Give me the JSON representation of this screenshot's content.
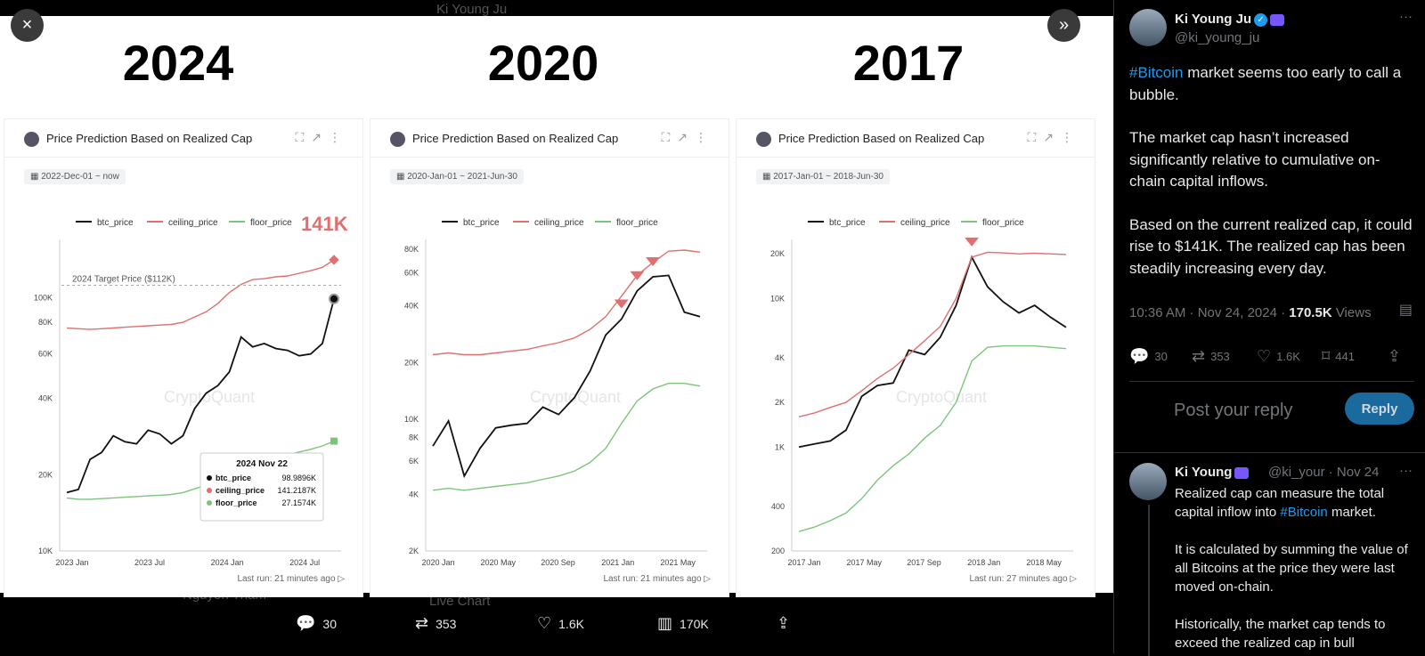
{
  "viewer": {
    "close_icon": "×",
    "collapse_icon": "»",
    "bg_ghost_top": "Ki Young Ju",
    "bg_ghost_reply_name": "Nguyen Tham",
    "bg_ghost_live": "Live Chart"
  },
  "image": {
    "years": [
      "2024",
      "2020",
      "2017"
    ],
    "cards": [
      {
        "title": "Price Prediction Based on Realized Cap",
        "range": "2022-Dec-01 ~ now",
        "last_run": "Last run: 21 minutes ago",
        "callout": "141K",
        "target_label": "2024 Target Price ($112K)",
        "tooltip": {
          "date": "2024 Nov 22",
          "rows": [
            {
              "name": "btc_price",
              "value": "98.9896K"
            },
            {
              "name": "ceiling_price",
              "value": "141.2187K"
            },
            {
              "name": "floor_price",
              "value": "27.1574K"
            }
          ]
        }
      },
      {
        "title": "Price Prediction Based on Realized Cap",
        "range": "2020-Jan-01 ~ 2021-Jun-30",
        "last_run": "Last run: 21 minutes ago"
      },
      {
        "title": "Price Prediction Based on Realized Cap",
        "range": "2017-Jan-01 ~ 2018-Jun-30",
        "last_run": "Last run: 27 minutes ago"
      }
    ]
  },
  "chart_data": [
    {
      "type": "line",
      "log_scale": true,
      "legend": [
        "btc_price",
        "ceiling_price",
        "floor_price"
      ],
      "colors": {
        "btc_price": "#111111",
        "ceiling_price": "#e07070",
        "floor_price": "#7cc47c"
      },
      "xticks": [
        "2023 Jan",
        "2023 Jul",
        "2024 Jan",
        "2024 Jul"
      ],
      "yticks": [
        "10K",
        "20K",
        "40K",
        "60K",
        "80K",
        "100K"
      ],
      "ylim": [
        10000,
        170000
      ],
      "x": [
        "2022-12",
        "2023-01",
        "2023-02",
        "2023-03",
        "2023-04",
        "2023-05",
        "2023-06",
        "2023-07",
        "2023-08",
        "2023-09",
        "2023-10",
        "2023-11",
        "2023-12",
        "2024-01",
        "2024-02",
        "2024-03",
        "2024-04",
        "2024-05",
        "2024-06",
        "2024-07",
        "2024-08",
        "2024-09",
        "2024-10",
        "2024-11-22"
      ],
      "series": [
        {
          "name": "btc_price",
          "values": [
            17000,
            17500,
            23000,
            24500,
            28500,
            27000,
            26500,
            30000,
            29000,
            26500,
            28500,
            36500,
            42000,
            45000,
            51000,
            70000,
            64000,
            66000,
            63000,
            62000,
            59000,
            60000,
            66000,
            98990
          ]
        },
        {
          "name": "ceiling_price",
          "values": [
            76000,
            75500,
            75000,
            75500,
            76000,
            76500,
            77000,
            77500,
            78000,
            78500,
            80000,
            84000,
            88000,
            95000,
            105000,
            113000,
            118000,
            119000,
            121000,
            122000,
            125000,
            128000,
            132000,
            141219
          ]
        },
        {
          "name": "floor_price",
          "values": [
            16200,
            16000,
            16000,
            16100,
            16200,
            16300,
            16400,
            16500,
            16600,
            16700,
            17000,
            17600,
            18200,
            19000,
            20000,
            21500,
            22500,
            23000,
            23500,
            24000,
            24600,
            25200,
            26000,
            27157
          ]
        }
      ]
    },
    {
      "type": "line",
      "log_scale": true,
      "legend": [
        "btc_price",
        "ceiling_price",
        "floor_price"
      ],
      "colors": {
        "btc_price": "#111111",
        "ceiling_price": "#e07070",
        "floor_price": "#7cc47c"
      },
      "xticks": [
        "2020 Jan",
        "2020 May",
        "2020 Sep",
        "2021 Jan",
        "2021 May"
      ],
      "yticks": [
        "2K",
        "4K",
        "6K",
        "8K",
        "10K",
        "20K",
        "40K",
        "60K",
        "80K"
      ],
      "ylim": [
        2000,
        90000
      ],
      "x": [
        "2020-01",
        "2020-02",
        "2020-03",
        "2020-04",
        "2020-05",
        "2020-06",
        "2020-07",
        "2020-08",
        "2020-09",
        "2020-10",
        "2020-11",
        "2020-12",
        "2021-01",
        "2021-02",
        "2021-03",
        "2021-04",
        "2021-05",
        "2021-06"
      ],
      "series": [
        {
          "name": "btc_price",
          "values": [
            7200,
            9800,
            5000,
            7000,
            9000,
            9300,
            9500,
            11600,
            10600,
            13000,
            18000,
            28000,
            34000,
            48000,
            57000,
            58000,
            37000,
            35000
          ]
        },
        {
          "name": "ceiling_price",
          "values": [
            22000,
            22500,
            22000,
            22000,
            22500,
            23000,
            23500,
            24500,
            25500,
            27000,
            30000,
            35000,
            45000,
            58000,
            68000,
            78000,
            79000,
            77000
          ]
        },
        {
          "name": "floor_price",
          "values": [
            4200,
            4300,
            4200,
            4300,
            4400,
            4500,
            4600,
            4800,
            5000,
            5300,
            5900,
            7000,
            9500,
            12500,
            14500,
            15500,
            15500,
            15000
          ]
        }
      ]
    },
    {
      "type": "line",
      "log_scale": true,
      "legend": [
        "btc_price",
        "ceiling_price",
        "floor_price"
      ],
      "colors": {
        "btc_price": "#111111",
        "ceiling_price": "#e07070",
        "floor_price": "#7cc47c"
      },
      "xticks": [
        "2017 Jan",
        "2017 May",
        "2017 Sep",
        "2018 Jan",
        "2018 May"
      ],
      "yticks": [
        "200",
        "400",
        "1K",
        "2K",
        "4K",
        "10K",
        "20K"
      ],
      "ylim": [
        200,
        25000
      ],
      "x": [
        "2017-01",
        "2017-02",
        "2017-03",
        "2017-04",
        "2017-05",
        "2017-06",
        "2017-07",
        "2017-08",
        "2017-09",
        "2017-10",
        "2017-11",
        "2017-12",
        "2018-01",
        "2018-02",
        "2018-03",
        "2018-04",
        "2018-05",
        "2018-06"
      ],
      "series": [
        {
          "name": "btc_price",
          "values": [
            1000,
            1050,
            1100,
            1300,
            2200,
            2600,
            2700,
            4500,
            4200,
            5500,
            9000,
            19000,
            12000,
            9500,
            8000,
            9000,
            7500,
            6400
          ]
        },
        {
          "name": "ceiling_price",
          "values": [
            1600,
            1700,
            1850,
            2000,
            2400,
            2900,
            3400,
            4200,
            5200,
            6500,
            10000,
            19000,
            20500,
            20300,
            20000,
            20200,
            20000,
            19800
          ]
        },
        {
          "name": "floor_price",
          "values": [
            270,
            290,
            320,
            360,
            450,
            600,
            750,
            900,
            1150,
            1400,
            2000,
            3800,
            4700,
            4800,
            4800,
            4800,
            4700,
            4600
          ]
        }
      ]
    }
  ],
  "bottom_actions": [
    {
      "icon": "reply-icon",
      "glyph": "💬",
      "count": "30"
    },
    {
      "icon": "retweet-icon",
      "glyph": "⇄",
      "count": "353"
    },
    {
      "icon": "like-icon",
      "glyph": "♡",
      "count": "1.6K"
    },
    {
      "icon": "views-icon",
      "glyph": "▥",
      "count": "170K"
    },
    {
      "icon": "share-icon",
      "glyph": "⇪",
      "count": ""
    }
  ],
  "tweet": {
    "name": "Ki Young Ju",
    "handle": "@ki_young_ju",
    "more": "···",
    "hashtag": "#Bitcoin",
    "line1_rest": " market seems too early to call a bubble.",
    "para2": "The market cap hasn’t increased significantly relative to cumulative on-chain capital inflows.",
    "para3": "Based on the current realized cap, it could rise to $141K. The realized cap has been steadily increasing every day.",
    "time": "10:36 AM · Nov 24, 2024 · ",
    "views_count": "170.5K",
    "views_label": " Views",
    "stats": [
      {
        "icon": "reply-icon",
        "glyph": "💬",
        "count": "30"
      },
      {
        "icon": "retweet-icon",
        "glyph": "⇄",
        "count": "353"
      },
      {
        "icon": "like-icon",
        "glyph": "♡",
        "count": "1.6K"
      },
      {
        "icon": "bookmark-icon",
        "glyph": "⌑",
        "count": "441"
      },
      {
        "icon": "share-icon",
        "glyph": "⇪",
        "count": ""
      }
    ],
    "reply_placeholder": "Post your reply",
    "reply_button": "Reply"
  },
  "reply_tweet": {
    "name": "Ki Young",
    "handle": "@ki_your",
    "date": "· Nov 24",
    "more": "···",
    "p1_pre": "Realized cap can measure the total capital inflow into ",
    "p1_hash": "#Bitcoin",
    "p1_post": " market.",
    "p2": "It is calculated by summing the value of all Bitcoins at the price they were last moved on-chain.",
    "p3": "Historically, the market cap tends to exceed the realized cap in bull"
  }
}
